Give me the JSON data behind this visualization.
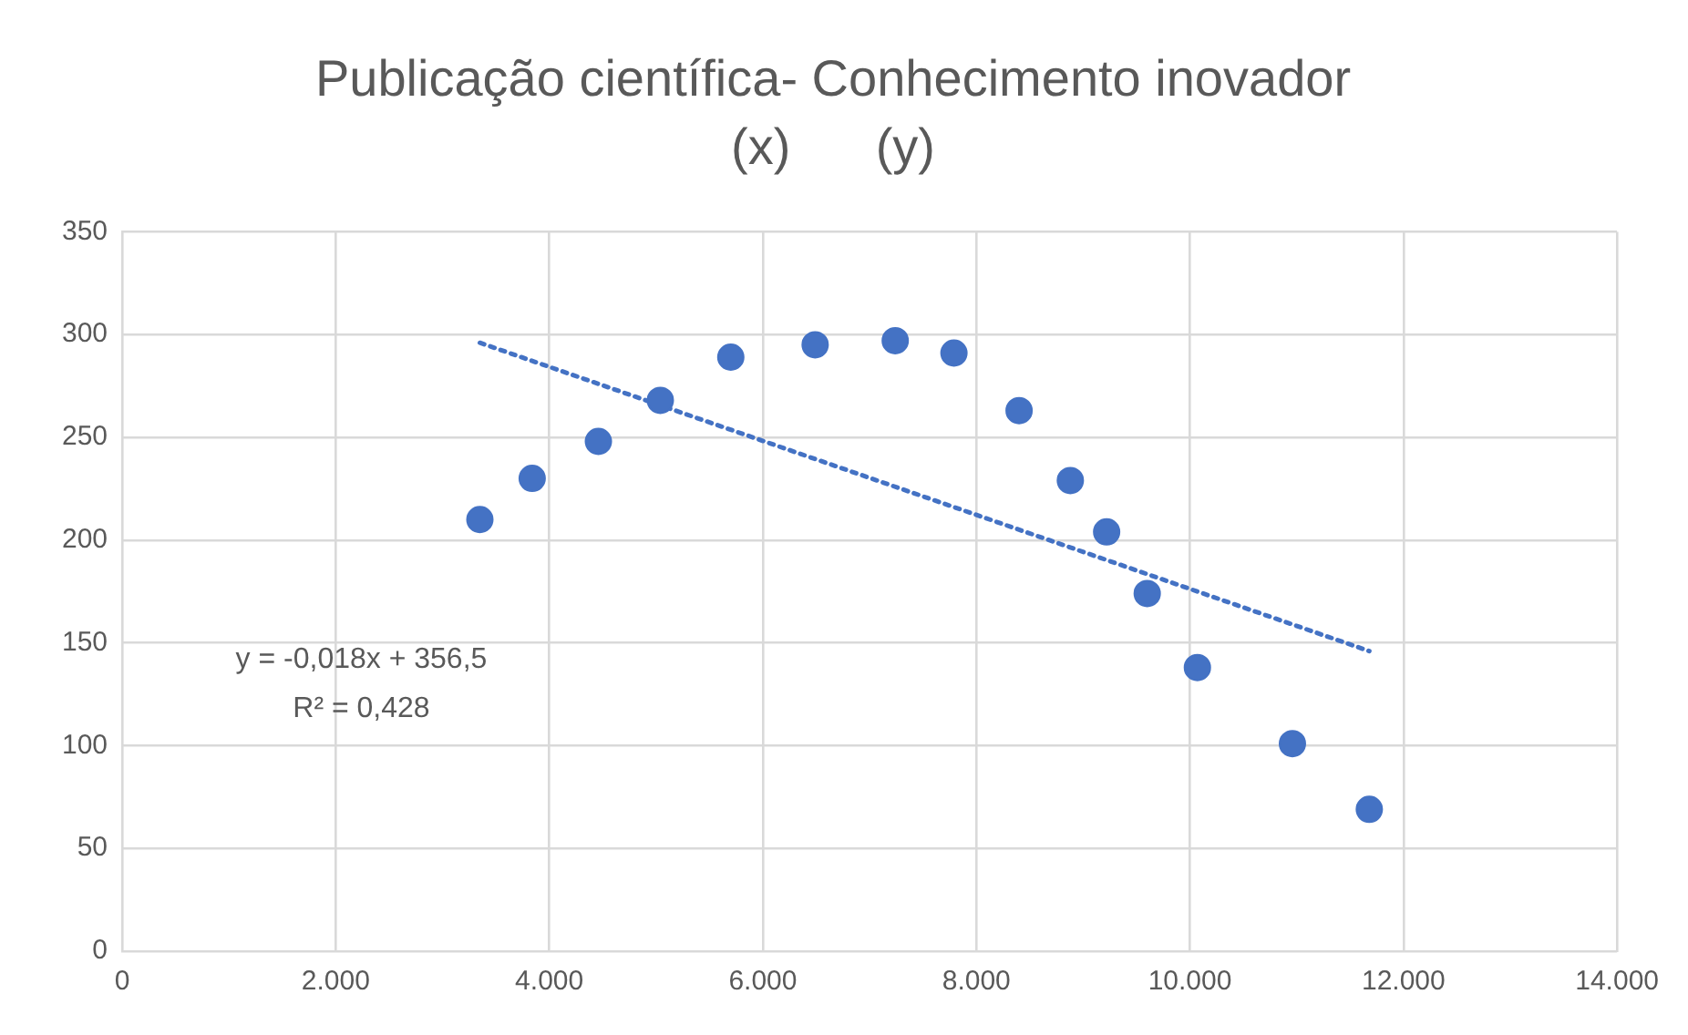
{
  "chart_data": {
    "type": "scatter",
    "title": "Publicação científica- Conhecimento inovador",
    "subtitle": "(x)      (y)",
    "series": [
      {
        "type": "scatter",
        "color": "#4472c4",
        "marker": "circle",
        "x": [
          3350,
          3840,
          4460,
          5040,
          5700,
          6490,
          7240,
          7790,
          8400,
          8880,
          9220,
          9600,
          10070,
          10960,
          11680
        ],
        "values": [
          210,
          230,
          248,
          268,
          289,
          295,
          297,
          291,
          263,
          229,
          204,
          174,
          138,
          101,
          69
        ]
      },
      {
        "type": "line",
        "color": "#4472c4",
        "line_style": "dotted",
        "marker": "none",
        "x": [
          3350,
          11680
        ],
        "values": [
          296,
          146
        ]
      }
    ],
    "annotations": [
      "y = -0,018x + 356,5",
      "R² = 0,428"
    ],
    "xlim": [
      0,
      14000
    ],
    "xticks": [
      0,
      {
        "value": 2000,
        "label": "2.000"
      },
      {
        "value": 4000,
        "label": "4.000"
      },
      {
        "value": 6000,
        "label": "6.000"
      },
      {
        "value": 8000,
        "label": "8.000"
      },
      {
        "value": 10000,
        "label": "10.000"
      },
      {
        "value": 12000,
        "label": "12.000"
      },
      {
        "value": 14000,
        "label": "14.000"
      }
    ],
    "ylim": [
      0,
      350
    ],
    "yticks": [
      0,
      50,
      100,
      150,
      200,
      250,
      300,
      350
    ],
    "grid": true,
    "legend": false
  }
}
